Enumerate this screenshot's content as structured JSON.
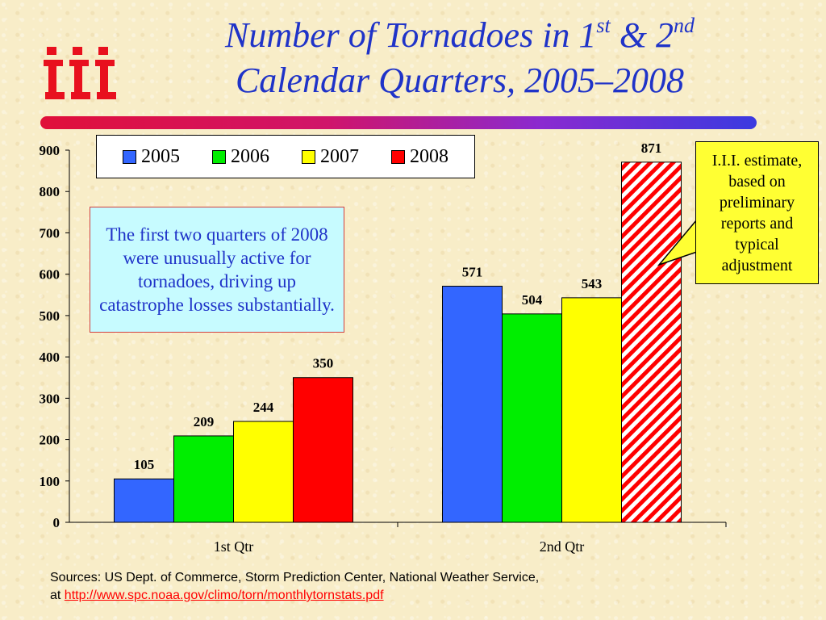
{
  "logo": {
    "icon": "iii-logo-icon",
    "color": "#e8101e"
  },
  "title": {
    "line1_pre": "Number of Tornadoes in 1",
    "line1_sup1": "st",
    "line1_mid": " & 2",
    "line1_sup2": "nd",
    "line2": "Calendar Quarters, 2005–2008"
  },
  "note": "The first two quarters of 2008 were unusually active for tornadoes, driving up catastrophe losses substantially.",
  "callout": "I.I.I. estimate, based on preliminary reports and typical adjustment",
  "sources": {
    "line1": "Sources: US Dept. of Commerce, Storm Prediction Center, National Weather Service,",
    "at": "at ",
    "link_text": "http://www.spc.noaa.gov/climo/torn/monthlytornstats.pdf"
  },
  "chart_data": {
    "type": "bar",
    "categories": [
      "1st Qtr",
      "2nd Qtr"
    ],
    "series": [
      {
        "name": "2005",
        "values": [
          105,
          571
        ],
        "color": "#3366ff"
      },
      {
        "name": "2006",
        "values": [
          209,
          504
        ],
        "color": "#00ee00"
      },
      {
        "name": "2007",
        "values": [
          244,
          543
        ],
        "color": "#ffff00"
      },
      {
        "name": "2008",
        "values": [
          350,
          871
        ],
        "color": "#ff0000",
        "hatched_categories": [
          "2nd Qtr"
        ]
      }
    ],
    "ylim": [
      0,
      900
    ],
    "yticks": [
      0,
      100,
      200,
      300,
      400,
      500,
      600,
      700,
      800,
      900
    ],
    "data_labels": true,
    "legend_position": "top",
    "grid": false
  }
}
